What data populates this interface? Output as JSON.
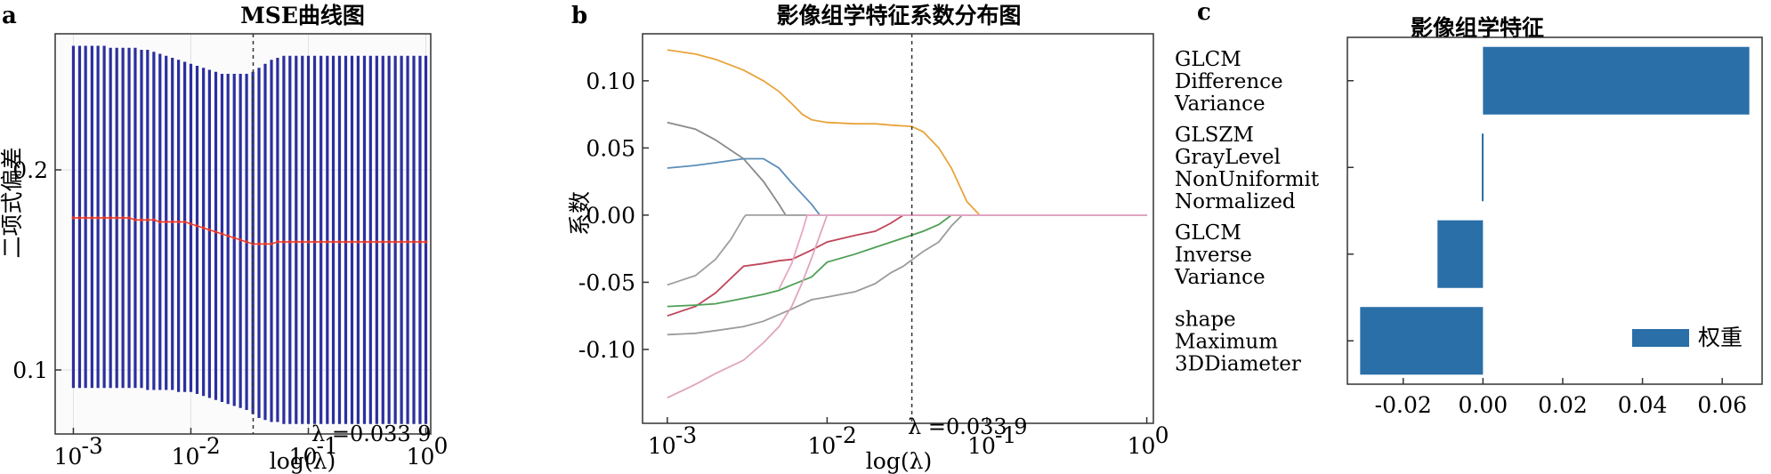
{
  "chart_data": [
    {
      "panel": "a",
      "type": "line",
      "title": "MSE曲线图",
      "xlabel": "log(λ)",
      "ylabel": "二项式偏差",
      "xscale": "log",
      "xlim": [
        0.0007,
        1.1
      ],
      "ylim": [
        0.068,
        0.268
      ],
      "xticks": [
        0.001,
        0.01,
        0.1,
        1
      ],
      "xtick_labels": [
        {
          "base": "10",
          "exp": "-3"
        },
        {
          "base": "10",
          "exp": "-2"
        },
        {
          "base": "10",
          "exp": "-1"
        },
        {
          "base": "10",
          "exp": "0"
        }
      ],
      "yticks": [
        0.1,
        0.2
      ],
      "ytick_labels": [
        "0.1",
        "0.2"
      ],
      "lambda_line": 0.0339,
      "annotation": "λ =0.033 9",
      "grid": true,
      "series": [
        {
          "x": [
            0.001,
            0.00113,
            0.00127,
            0.00144,
            0.00162,
            0.00183,
            0.00207,
            0.00234,
            0.00264,
            0.00298,
            0.00336,
            0.0038,
            0.00428,
            0.00484,
            0.00546,
            0.00616,
            0.00696,
            0.00785,
            0.00887,
            0.01,
            0.0113,
            0.0128,
            0.0144,
            0.0163,
            0.0184,
            0.0207,
            0.0234,
            0.0264,
            0.0298,
            0.0337,
            0.038,
            0.0429,
            0.0485,
            0.0547,
            0.0618,
            0.0697,
            0.0787,
            0.0889,
            0.1,
            0.113,
            0.128,
            0.145,
            0.163,
            0.184,
            0.208,
            0.235,
            0.265,
            0.3,
            0.338,
            0.382,
            0.431,
            0.486,
            0.549,
            0.62,
            0.7,
            0.79,
            0.892,
            1.0
          ],
          "mean": [
            0.176,
            0.176,
            0.176,
            0.176,
            0.176,
            0.176,
            0.176,
            0.176,
            0.176,
            0.176,
            0.175,
            0.175,
            0.175,
            0.175,
            0.174,
            0.174,
            0.174,
            0.174,
            0.174,
            0.173,
            0.172,
            0.171,
            0.17,
            0.169,
            0.168,
            0.167,
            0.166,
            0.165,
            0.164,
            0.163,
            0.163,
            0.163,
            0.163,
            0.164,
            0.164,
            0.164,
            0.164,
            0.164,
            0.164,
            0.164,
            0.164,
            0.164,
            0.164,
            0.164,
            0.164,
            0.164,
            0.164,
            0.164,
            0.164,
            0.164,
            0.164,
            0.164,
            0.164,
            0.164,
            0.164,
            0.164,
            0.164,
            0.164
          ],
          "upper": [
            0.262,
            0.262,
            0.262,
            0.262,
            0.262,
            0.262,
            0.261,
            0.261,
            0.261,
            0.261,
            0.261,
            0.26,
            0.26,
            0.259,
            0.258,
            0.257,
            0.256,
            0.255,
            0.254,
            0.253,
            0.252,
            0.251,
            0.25,
            0.249,
            0.248,
            0.248,
            0.248,
            0.248,
            0.248,
            0.249,
            0.251,
            0.253,
            0.255,
            0.256,
            0.257,
            0.257,
            0.257,
            0.257,
            0.257,
            0.257,
            0.257,
            0.257,
            0.257,
            0.257,
            0.257,
            0.257,
            0.257,
            0.257,
            0.257,
            0.257,
            0.257,
            0.257,
            0.257,
            0.257,
            0.257,
            0.257,
            0.257,
            0.257
          ],
          "lower": [
            0.091,
            0.091,
            0.091,
            0.091,
            0.091,
            0.091,
            0.091,
            0.091,
            0.091,
            0.091,
            0.091,
            0.091,
            0.09,
            0.09,
            0.09,
            0.09,
            0.09,
            0.089,
            0.089,
            0.089,
            0.088,
            0.087,
            0.086,
            0.085,
            0.084,
            0.083,
            0.082,
            0.081,
            0.08,
            0.078,
            0.076,
            0.075,
            0.074,
            0.074,
            0.073,
            0.073,
            0.073,
            0.073,
            0.073,
            0.073,
            0.073,
            0.073,
            0.073,
            0.073,
            0.073,
            0.073,
            0.073,
            0.073,
            0.073,
            0.073,
            0.073,
            0.073,
            0.073,
            0.073,
            0.073,
            0.073,
            0.073,
            0.073
          ]
        }
      ],
      "colors": {
        "errorbar": "#2b2f9e",
        "mean": "#e0332a"
      }
    },
    {
      "panel": "b",
      "type": "line",
      "title": "影像组学特征系数分布图",
      "xlabel": "log(λ)",
      "ylabel": "系数",
      "xscale": "log",
      "xlim": [
        0.0007,
        1.1
      ],
      "ylim": [
        -0.155,
        0.135
      ],
      "xticks": [
        0.001,
        0.01,
        0.1,
        1
      ],
      "xtick_labels": [
        {
          "base": "10",
          "exp": "-3"
        },
        {
          "base": "10",
          "exp": "-2"
        },
        {
          "base": "10",
          "exp": "-1"
        },
        {
          "base": "10",
          "exp": "0"
        }
      ],
      "yticks": [
        -0.1,
        -0.05,
        0.0,
        0.05,
        0.1
      ],
      "ytick_labels": [
        "-0.10",
        "-0.05",
        "0.00",
        "0.05",
        "0.10"
      ],
      "lambda_line": 0.0339,
      "annotation": "λ =0.033 9",
      "series": [
        {
          "color": "#e8a33a",
          "points": [
            [
              0.001,
              0.123
            ],
            [
              0.0015,
              0.12
            ],
            [
              0.002,
              0.116
            ],
            [
              0.003,
              0.108
            ],
            [
              0.004,
              0.1
            ],
            [
              0.005,
              0.092
            ],
            [
              0.006,
              0.083
            ],
            [
              0.007,
              0.075
            ],
            [
              0.008,
              0.071
            ],
            [
              0.01,
              0.069
            ],
            [
              0.015,
              0.068
            ],
            [
              0.02,
              0.068
            ],
            [
              0.025,
              0.067
            ],
            [
              0.0339,
              0.066
            ],
            [
              0.04,
              0.062
            ],
            [
              0.05,
              0.05
            ],
            [
              0.06,
              0.035
            ],
            [
              0.075,
              0.01
            ],
            [
              0.09,
              0.0
            ],
            [
              1.0,
              0.0
            ]
          ]
        },
        {
          "color": "#8a8a8a",
          "points": [
            [
              0.001,
              0.069
            ],
            [
              0.0015,
              0.064
            ],
            [
              0.002,
              0.056
            ],
            [
              0.003,
              0.042
            ],
            [
              0.004,
              0.025
            ],
            [
              0.005,
              0.008
            ],
            [
              0.0055,
              0.0
            ],
            [
              1.0,
              0.0
            ]
          ]
        },
        {
          "color": "#5b8db8",
          "points": [
            [
              0.001,
              0.035
            ],
            [
              0.0015,
              0.037
            ],
            [
              0.002,
              0.039
            ],
            [
              0.003,
              0.042
            ],
            [
              0.004,
              0.042
            ],
            [
              0.005,
              0.035
            ],
            [
              0.006,
              0.024
            ],
            [
              0.008,
              0.008
            ],
            [
              0.009,
              0.0
            ],
            [
              1.0,
              0.0
            ]
          ]
        },
        {
          "color": "#a0a0a0",
          "points": [
            [
              0.001,
              -0.052
            ],
            [
              0.0015,
              -0.045
            ],
            [
              0.002,
              -0.033
            ],
            [
              0.0025,
              -0.018
            ],
            [
              0.003,
              -0.002
            ],
            [
              0.0031,
              0.0
            ],
            [
              1.0,
              0.0
            ]
          ]
        },
        {
          "color": "#c0455a",
          "points": [
            [
              0.001,
              -0.075
            ],
            [
              0.0015,
              -0.068
            ],
            [
              0.002,
              -0.058
            ],
            [
              0.003,
              -0.038
            ],
            [
              0.004,
              -0.036
            ],
            [
              0.005,
              -0.034
            ],
            [
              0.006,
              -0.033
            ],
            [
              0.008,
              -0.026
            ],
            [
              0.01,
              -0.02
            ],
            [
              0.015,
              -0.015
            ],
            [
              0.02,
              -0.012
            ],
            [
              0.025,
              -0.006
            ],
            [
              0.03,
              0.0
            ],
            [
              1.0,
              0.0
            ]
          ]
        },
        {
          "color": "#4f9f56",
          "points": [
            [
              0.001,
              -0.068
            ],
            [
              0.0015,
              -0.067
            ],
            [
              0.002,
              -0.066
            ],
            [
              0.003,
              -0.062
            ],
            [
              0.004,
              -0.059
            ],
            [
              0.005,
              -0.056
            ],
            [
              0.006,
              -0.052
            ],
            [
              0.008,
              -0.046
            ],
            [
              0.01,
              -0.035
            ],
            [
              0.015,
              -0.029
            ],
            [
              0.02,
              -0.024
            ],
            [
              0.03,
              -0.017
            ],
            [
              0.04,
              -0.012
            ],
            [
              0.05,
              -0.007
            ],
            [
              0.06,
              0.0
            ],
            [
              1.0,
              0.0
            ]
          ]
        },
        {
          "color": "#9b9b9b",
          "points": [
            [
              0.001,
              -0.089
            ],
            [
              0.0015,
              -0.088
            ],
            [
              0.002,
              -0.086
            ],
            [
              0.003,
              -0.083
            ],
            [
              0.004,
              -0.079
            ],
            [
              0.006,
              -0.07
            ],
            [
              0.008,
              -0.063
            ],
            [
              0.01,
              -0.061
            ],
            [
              0.015,
              -0.057
            ],
            [
              0.02,
              -0.051
            ],
            [
              0.025,
              -0.043
            ],
            [
              0.03,
              -0.038
            ],
            [
              0.04,
              -0.027
            ],
            [
              0.05,
              -0.02
            ],
            [
              0.06,
              -0.008
            ],
            [
              0.07,
              0.0
            ],
            [
              1.0,
              0.0
            ]
          ]
        },
        {
          "color": "#e0a4be",
          "points": [
            [
              0.001,
              -0.136
            ],
            [
              0.0015,
              -0.126
            ],
            [
              0.002,
              -0.118
            ],
            [
              0.003,
              -0.108
            ],
            [
              0.004,
              -0.095
            ],
            [
              0.005,
              -0.083
            ],
            [
              0.006,
              -0.068
            ],
            [
              0.007,
              -0.05
            ],
            [
              0.008,
              -0.032
            ],
            [
              0.009,
              -0.015
            ],
            [
              0.01,
              0.0
            ],
            [
              1.0,
              0.0
            ]
          ]
        },
        {
          "color": "#e7a7c5",
          "points": [
            [
              0.005,
              -0.055
            ],
            [
              0.006,
              -0.036
            ],
            [
              0.007,
              -0.012
            ],
            [
              0.0075,
              0.0
            ],
            [
              1.0,
              0.0
            ]
          ]
        }
      ]
    },
    {
      "panel": "c",
      "type": "bar",
      "orientation": "horizontal",
      "title": "影像组学特征",
      "xlim": [
        -0.034,
        0.07
      ],
      "xticks": [
        -0.02,
        0.0,
        0.02,
        0.04,
        0.06
      ],
      "xtick_labels": [
        "-0.02",
        "0.00",
        "0.02",
        "0.04",
        "0.06"
      ],
      "categories": [
        [
          "GLCM",
          "Difference",
          "Variance"
        ],
        [
          "GLSZM",
          "GrayLevel",
          "NonUniformit",
          "Normalized"
        ],
        [
          "GLCM",
          "Inverse",
          "Variance"
        ],
        [
          "shape",
          "Maximum",
          "3DDiameter"
        ]
      ],
      "values": [
        0.0668,
        -0.0003,
        -0.0114,
        -0.0308
      ],
      "legend": "权重",
      "legend_position": "lower-right",
      "bar_color": "#2a6fa8"
    }
  ],
  "panel_letters": [
    "a",
    "b",
    "c"
  ]
}
